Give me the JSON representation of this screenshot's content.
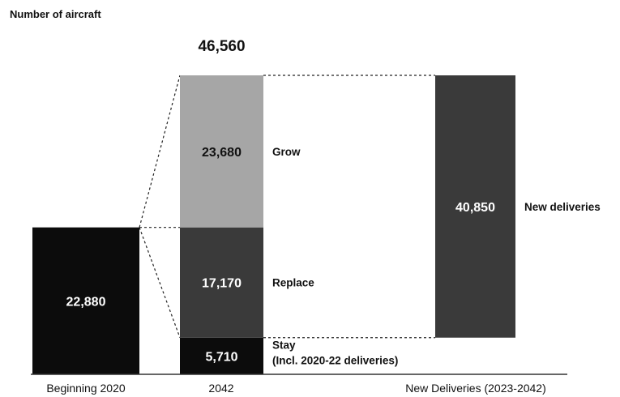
{
  "chart_data": {
    "type": "bar",
    "variant": "stacked-waterfall",
    "ylabel": "Number of aircraft",
    "categories": [
      "Beginning 2020",
      "2042",
      "New Deliveries (2023-2042)"
    ],
    "bars": [
      {
        "category": "Beginning 2020",
        "segments": [
          {
            "value": 22880,
            "label": "22,880",
            "name": "",
            "color": "#0c0c0c",
            "text_color": "#ffffff"
          }
        ]
      },
      {
        "category": "2042",
        "total": 46560,
        "total_label": "46,560",
        "segments": [
          {
            "value": 5710,
            "label": "5,710",
            "name": "Stay",
            "name_line2": "(Incl. 2020-22 deliveries)",
            "color": "#0c0c0c",
            "text_color": "#ffffff"
          },
          {
            "value": 17170,
            "label": "17,170",
            "name": "Replace",
            "color": "#3a3a3a",
            "text_color": "#ffffff"
          },
          {
            "value": 23680,
            "label": "23,680",
            "name": "Grow",
            "color": "#a6a6a6",
            "text_color": "#111111"
          }
        ]
      },
      {
        "category": "New Deliveries (2023-2042)",
        "segments": [
          {
            "value": 40850,
            "label": "40,850",
            "name": "New deliveries",
            "color": "#3a3a3a",
            "text_color": "#ffffff",
            "base": 5710
          }
        ]
      }
    ],
    "ylim": [
      0,
      46560
    ],
    "grid": false,
    "legend": "none"
  }
}
